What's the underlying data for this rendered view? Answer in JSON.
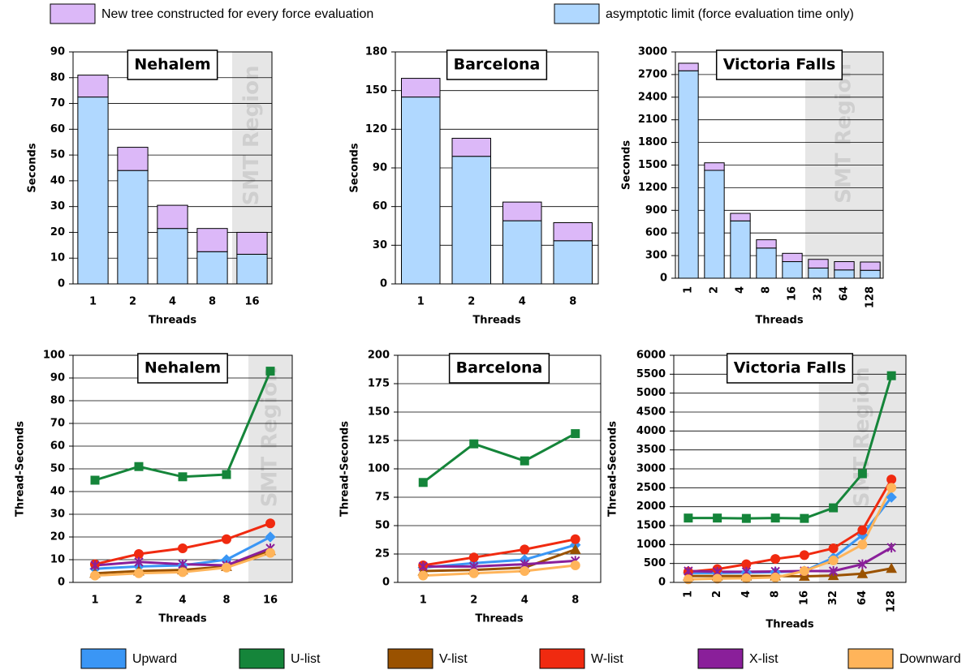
{
  "chart_data": [
    {
      "type": "bar",
      "title": "Nehalem",
      "x_label": "Threads",
      "y_label": "Seconds",
      "categories": [
        "1",
        "2",
        "4",
        "8",
        "16"
      ],
      "series": [
        {
          "name": "asymptotic limit (force evaluation time only)",
          "color": "#b0d8ff",
          "values": [
            72.5,
            44,
            21.5,
            12.5,
            11.5
          ]
        },
        {
          "name": "New tree constructed for every force evaluation",
          "color": "#dcb8f8",
          "values": [
            8.5,
            9,
            9,
            9,
            8.5
          ]
        }
      ],
      "ylim": [
        0,
        90
      ],
      "yticks": [
        0,
        10,
        20,
        30,
        40,
        50,
        60,
        70,
        80,
        90
      ],
      "grid": true,
      "shade_from": "16",
      "shade_label": "SMT Region"
    },
    {
      "type": "bar",
      "title": "Barcelona",
      "x_label": "Threads",
      "y_label": "Seconds",
      "categories": [
        "1",
        "2",
        "4",
        "8"
      ],
      "series": [
        {
          "name": "asymptotic limit (force evaluation time only)",
          "color": "#b0d8ff",
          "values": [
            145,
            99,
            49,
            33.5
          ]
        },
        {
          "name": "New tree constructed for every force evaluation",
          "color": "#dcb8f8",
          "values": [
            14.5,
            14,
            14.5,
            14
          ]
        }
      ],
      "ylim": [
        0,
        180
      ],
      "yticks": [
        0,
        30,
        60,
        90,
        120,
        150,
        180
      ],
      "grid": true
    },
    {
      "type": "bar",
      "title": "Victoria Falls",
      "x_label": "Threads",
      "y_label": "Seconds",
      "categories": [
        "1",
        "2",
        "4",
        "8",
        "16",
        "32",
        "64",
        "128"
      ],
      "series": [
        {
          "name": "asymptotic limit (force evaluation time only)",
          "color": "#b0d8ff",
          "values": [
            2750,
            1430,
            760,
            400,
            220,
            135,
            110,
            105
          ]
        },
        {
          "name": "New tree constructed for every force evaluation",
          "color": "#dcb8f8",
          "values": [
            100,
            100,
            100,
            110,
            110,
            115,
            110,
            110
          ]
        }
      ],
      "ylim": [
        0,
        3000
      ],
      "yticks": [
        0,
        300,
        600,
        900,
        1200,
        1500,
        1800,
        2100,
        2400,
        2700,
        3000
      ],
      "grid": true,
      "shade_from": "32",
      "shade_label": "SMT Region"
    },
    {
      "type": "line",
      "title": "Nehalem",
      "x_label": "Threads",
      "y_label": "Thread-Seconds",
      "categories": [
        "1",
        "2",
        "4",
        "8",
        "16"
      ],
      "series": [
        {
          "name": "Upward",
          "color": "#3a96f5",
          "marker": "diamond",
          "values": [
            6,
            7,
            7.5,
            10,
            20
          ]
        },
        {
          "name": "U-list",
          "color": "#15853a",
          "marker": "square",
          "values": [
            45,
            51,
            46.5,
            47.5,
            93
          ]
        },
        {
          "name": "V-list",
          "color": "#9a5200",
          "marker": "triangle",
          "values": [
            4,
            5,
            5.5,
            7,
            14
          ]
        },
        {
          "name": "W-list",
          "color": "#f02a10",
          "marker": "circle",
          "values": [
            8,
            12.5,
            15,
            19,
            26
          ]
        },
        {
          "name": "X-list",
          "color": "#8a1f9a",
          "marker": "x",
          "values": [
            7.5,
            9,
            8,
            7.5,
            15
          ]
        },
        {
          "name": "Downward",
          "color": "#ffb45a",
          "marker": "circle",
          "values": [
            3,
            4,
            4.5,
            6.5,
            13
          ]
        }
      ],
      "ylim": [
        0,
        100
      ],
      "yticks": [
        0,
        10,
        20,
        30,
        40,
        50,
        60,
        70,
        80,
        90,
        100
      ],
      "grid": true,
      "shade_from": "16",
      "shade_label": "SMT Region"
    },
    {
      "type": "line",
      "title": "Barcelona",
      "x_label": "Threads",
      "y_label": "Thread-Seconds",
      "categories": [
        "1",
        "2",
        "4",
        "8"
      ],
      "series": [
        {
          "name": "Upward",
          "color": "#3a96f5",
          "marker": "diamond",
          "values": [
            13,
            17,
            20,
            33
          ]
        },
        {
          "name": "U-list",
          "color": "#15853a",
          "marker": "square",
          "values": [
            88,
            122,
            107,
            131
          ]
        },
        {
          "name": "V-list",
          "color": "#9a5200",
          "marker": "triangle",
          "values": [
            10,
            11,
            13,
            29
          ]
        },
        {
          "name": "W-list",
          "color": "#f02a10",
          "marker": "circle",
          "values": [
            15,
            22,
            29,
            38
          ]
        },
        {
          "name": "X-list",
          "color": "#8a1f9a",
          "marker": "x",
          "values": [
            14,
            14,
            16,
            19
          ]
        },
        {
          "name": "Downward",
          "color": "#ffb45a",
          "marker": "circle",
          "values": [
            6,
            8,
            10,
            15
          ]
        }
      ],
      "ylim": [
        0,
        200
      ],
      "yticks": [
        0,
        25,
        50,
        75,
        100,
        125,
        150,
        175,
        200
      ],
      "grid": true
    },
    {
      "type": "line",
      "title": "Victoria Falls",
      "x_label": "Threads",
      "y_label": "Thread-Seconds",
      "categories": [
        "1",
        "2",
        "4",
        "8",
        "16",
        "32",
        "64",
        "128"
      ],
      "series": [
        {
          "name": "Upward",
          "color": "#3a96f5",
          "marker": "diamond",
          "values": [
            250,
            250,
            260,
            270,
            300,
            650,
            1250,
            2250
          ]
        },
        {
          "name": "U-list",
          "color": "#15853a",
          "marker": "square",
          "values": [
            1700,
            1700,
            1690,
            1700,
            1690,
            1970,
            2870,
            5460
          ]
        },
        {
          "name": "V-list",
          "color": "#9a5200",
          "marker": "triangle",
          "values": [
            170,
            170,
            170,
            170,
            160,
            180,
            230,
            370
          ]
        },
        {
          "name": "W-list",
          "color": "#f02a10",
          "marker": "circle",
          "values": [
            280,
            350,
            480,
            620,
            720,
            900,
            1380,
            2720
          ]
        },
        {
          "name": "X-list",
          "color": "#8a1f9a",
          "marker": "x",
          "values": [
            300,
            280,
            280,
            290,
            300,
            300,
            480,
            920
          ]
        },
        {
          "name": "Downward",
          "color": "#ffb45a",
          "marker": "circle",
          "values": [
            80,
            100,
            110,
            130,
            300,
            580,
            1000,
            2500
          ]
        }
      ],
      "ylim": [
        0,
        6000
      ],
      "yticks": [
        0,
        500,
        1000,
        1500,
        2000,
        2500,
        3000,
        3500,
        4000,
        4500,
        5000,
        5500,
        6000
      ],
      "grid": true,
      "shade_from": "32",
      "shade_label": "SMT Region"
    }
  ]
}
